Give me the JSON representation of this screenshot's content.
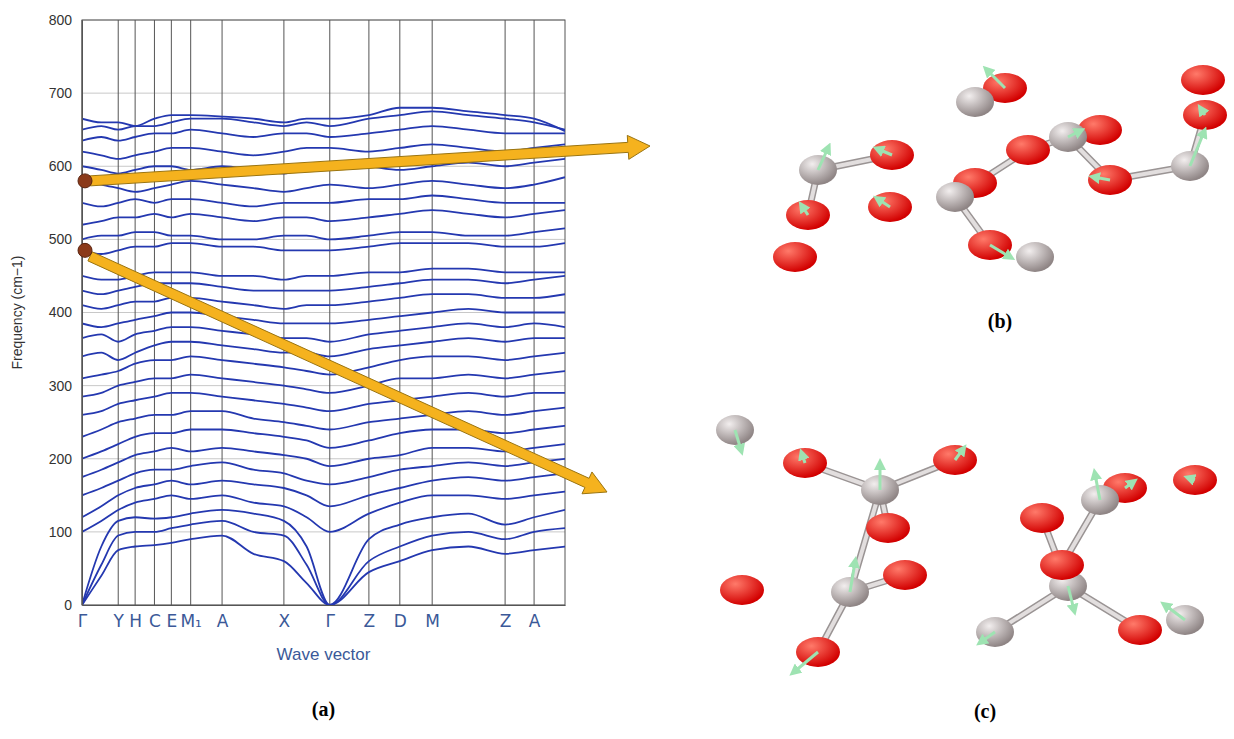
{
  "chart_data": {
    "type": "line",
    "x_label": "Wave vector",
    "y_label": "Frequency (cm−1)",
    "color": "#2438b0",
    "grid": true,
    "xlim": [
      0,
      1
    ],
    "ylim": [
      0,
      800
    ],
    "yticks": [
      0,
      100,
      200,
      300,
      400,
      500,
      600,
      700,
      800
    ],
    "xticks": [
      {
        "value": 0,
        "label": "Γ"
      },
      {
        "value": 0.075,
        "label": "Y"
      },
      {
        "value": 0.11,
        "label": "H"
      },
      {
        "value": 0.15,
        "label": "C"
      },
      {
        "value": 0.185,
        "label": "E"
      },
      {
        "value": 0.225,
        "label": "M₁"
      },
      {
        "value": 0.29,
        "label": "A"
      },
      {
        "value": 0.418,
        "label": "X"
      },
      {
        "value": 0.513,
        "label": "Γ"
      },
      {
        "value": 0.594,
        "label": "Z"
      },
      {
        "value": 0.658,
        "label": "D"
      },
      {
        "value": 0.725,
        "label": "M"
      },
      {
        "value": 0.876,
        "label": "Z"
      },
      {
        "value": 0.936,
        "label": "A"
      }
    ],
    "x": [
      0,
      0.04,
      0.075,
      0.11,
      0.15,
      0.185,
      0.225,
      0.29,
      0.355,
      0.418,
      0.465,
      0.513,
      0.594,
      0.658,
      0.725,
      0.8,
      0.876,
      0.936,
      1.0
    ],
    "series": [
      {
        "values": [
          0,
          40,
          75,
          80,
          82,
          85,
          90,
          95,
          70,
          60,
          30,
          0,
          45,
          60,
          75,
          80,
          70,
          75,
          80
        ]
      },
      {
        "values": [
          0,
          55,
          95,
          100,
          100,
          105,
          110,
          115,
          100,
          95,
          55,
          0,
          60,
          80,
          95,
          100,
          90,
          100,
          105
        ]
      },
      {
        "values": [
          0,
          80,
          115,
          120,
          118,
          120,
          125,
          130,
          125,
          115,
          80,
          0,
          90,
          110,
          120,
          125,
          110,
          120,
          130
        ]
      },
      {
        "values": [
          100,
          115,
          130,
          140,
          145,
          150,
          145,
          150,
          140,
          135,
          120,
          100,
          125,
          140,
          150,
          150,
          145,
          150,
          155
        ]
      },
      {
        "values": [
          120,
          135,
          150,
          160,
          165,
          170,
          165,
          170,
          165,
          160,
          150,
          135,
          150,
          160,
          170,
          175,
          170,
          175,
          180
        ]
      },
      {
        "values": [
          150,
          160,
          170,
          180,
          185,
          185,
          190,
          195,
          185,
          180,
          170,
          165,
          175,
          185,
          190,
          195,
          190,
          195,
          200
        ]
      },
      {
        "values": [
          175,
          185,
          195,
          205,
          210,
          215,
          210,
          215,
          210,
          205,
          200,
          190,
          200,
          205,
          215,
          215,
          210,
          215,
          220
        ]
      },
      {
        "values": [
          200,
          210,
          220,
          230,
          235,
          235,
          240,
          240,
          235,
          230,
          225,
          215,
          225,
          235,
          240,
          240,
          235,
          240,
          245
        ]
      },
      {
        "values": [
          230,
          240,
          250,
          255,
          260,
          260,
          265,
          265,
          255,
          250,
          245,
          240,
          250,
          255,
          260,
          265,
          260,
          265,
          270
        ]
      },
      {
        "values": [
          260,
          265,
          275,
          280,
          285,
          290,
          290,
          285,
          280,
          275,
          270,
          265,
          275,
          280,
          285,
          290,
          285,
          290,
          290
        ]
      },
      {
        "values": [
          285,
          290,
          300,
          305,
          310,
          310,
          315,
          310,
          305,
          300,
          295,
          290,
          300,
          310,
          310,
          315,
          310,
          315,
          320
        ]
      },
      {
        "values": [
          310,
          315,
          320,
          330,
          335,
          335,
          340,
          335,
          330,
          325,
          320,
          315,
          325,
          335,
          340,
          340,
          335,
          340,
          345
        ]
      },
      {
        "values": [
          340,
          345,
          335,
          345,
          355,
          360,
          360,
          355,
          350,
          345,
          345,
          340,
          350,
          355,
          360,
          365,
          360,
          365,
          365
        ]
      },
      {
        "values": [
          365,
          370,
          360,
          370,
          375,
          380,
          380,
          375,
          370,
          365,
          365,
          360,
          370,
          375,
          380,
          385,
          380,
          385,
          380
        ]
      },
      {
        "values": [
          385,
          380,
          385,
          390,
          395,
          400,
          400,
          395,
          390,
          385,
          385,
          385,
          390,
          395,
          400,
          405,
          400,
          400,
          400
        ]
      },
      {
        "values": [
          410,
          405,
          410,
          415,
          415,
          420,
          420,
          415,
          410,
          405,
          410,
          410,
          415,
          420,
          425,
          425,
          420,
          420,
          425
        ]
      },
      {
        "values": [
          430,
          425,
          430,
          435,
          440,
          440,
          440,
          435,
          430,
          430,
          430,
          430,
          435,
          440,
          445,
          445,
          440,
          445,
          450
        ]
      },
      {
        "values": [
          450,
          445,
          445,
          450,
          455,
          455,
          455,
          450,
          450,
          445,
          450,
          450,
          455,
          455,
          460,
          460,
          455,
          455,
          455
        ]
      },
      {
        "values": [
          485,
          480,
          485,
          490,
          490,
          495,
          495,
          490,
          490,
          485,
          485,
          485,
          490,
          495,
          495,
          495,
          490,
          490,
          495
        ]
      },
      {
        "values": [
          500,
          505,
          505,
          510,
          510,
          505,
          505,
          500,
          500,
          505,
          505,
          500,
          505,
          510,
          510,
          505,
          505,
          510,
          515
        ]
      },
      {
        "values": [
          520,
          525,
          530,
          530,
          535,
          530,
          535,
          530,
          525,
          530,
          530,
          525,
          530,
          535,
          540,
          535,
          530,
          535,
          540
        ]
      },
      {
        "values": [
          550,
          545,
          550,
          555,
          550,
          555,
          555,
          550,
          545,
          550,
          550,
          550,
          555,
          555,
          560,
          555,
          550,
          550,
          550
        ]
      },
      {
        "values": [
          580,
          575,
          570,
          565,
          570,
          575,
          580,
          575,
          570,
          565,
          570,
          575,
          570,
          575,
          580,
          575,
          570,
          575,
          585
        ]
      },
      {
        "values": [
          600,
          595,
          590,
          595,
          600,
          600,
          595,
          600,
          595,
          590,
          600,
          605,
          600,
          595,
          600,
          605,
          600,
          605,
          610
        ]
      },
      {
        "values": [
          620,
          615,
          610,
          615,
          620,
          625,
          625,
          620,
          615,
          620,
          625,
          625,
          620,
          625,
          630,
          625,
          620,
          625,
          630
        ]
      },
      {
        "values": [
          635,
          640,
          635,
          640,
          645,
          645,
          650,
          645,
          640,
          645,
          645,
          640,
          645,
          650,
          655,
          650,
          645,
          645,
          645
        ]
      },
      {
        "values": [
          650,
          655,
          650,
          655,
          655,
          660,
          665,
          665,
          660,
          655,
          660,
          655,
          665,
          670,
          675,
          670,
          665,
          660,
          650
        ]
      },
      {
        "values": [
          665,
          660,
          660,
          655,
          665,
          670,
          670,
          668,
          665,
          660,
          665,
          665,
          670,
          680,
          680,
          675,
          670,
          665,
          648
        ]
      }
    ],
    "highlighted_modes": [
      {
        "x": 0,
        "y": 580
      },
      {
        "x": 0,
        "y": 485
      }
    ]
  },
  "panel_labels": [
    "(a)",
    "(b)",
    "(c)"
  ]
}
